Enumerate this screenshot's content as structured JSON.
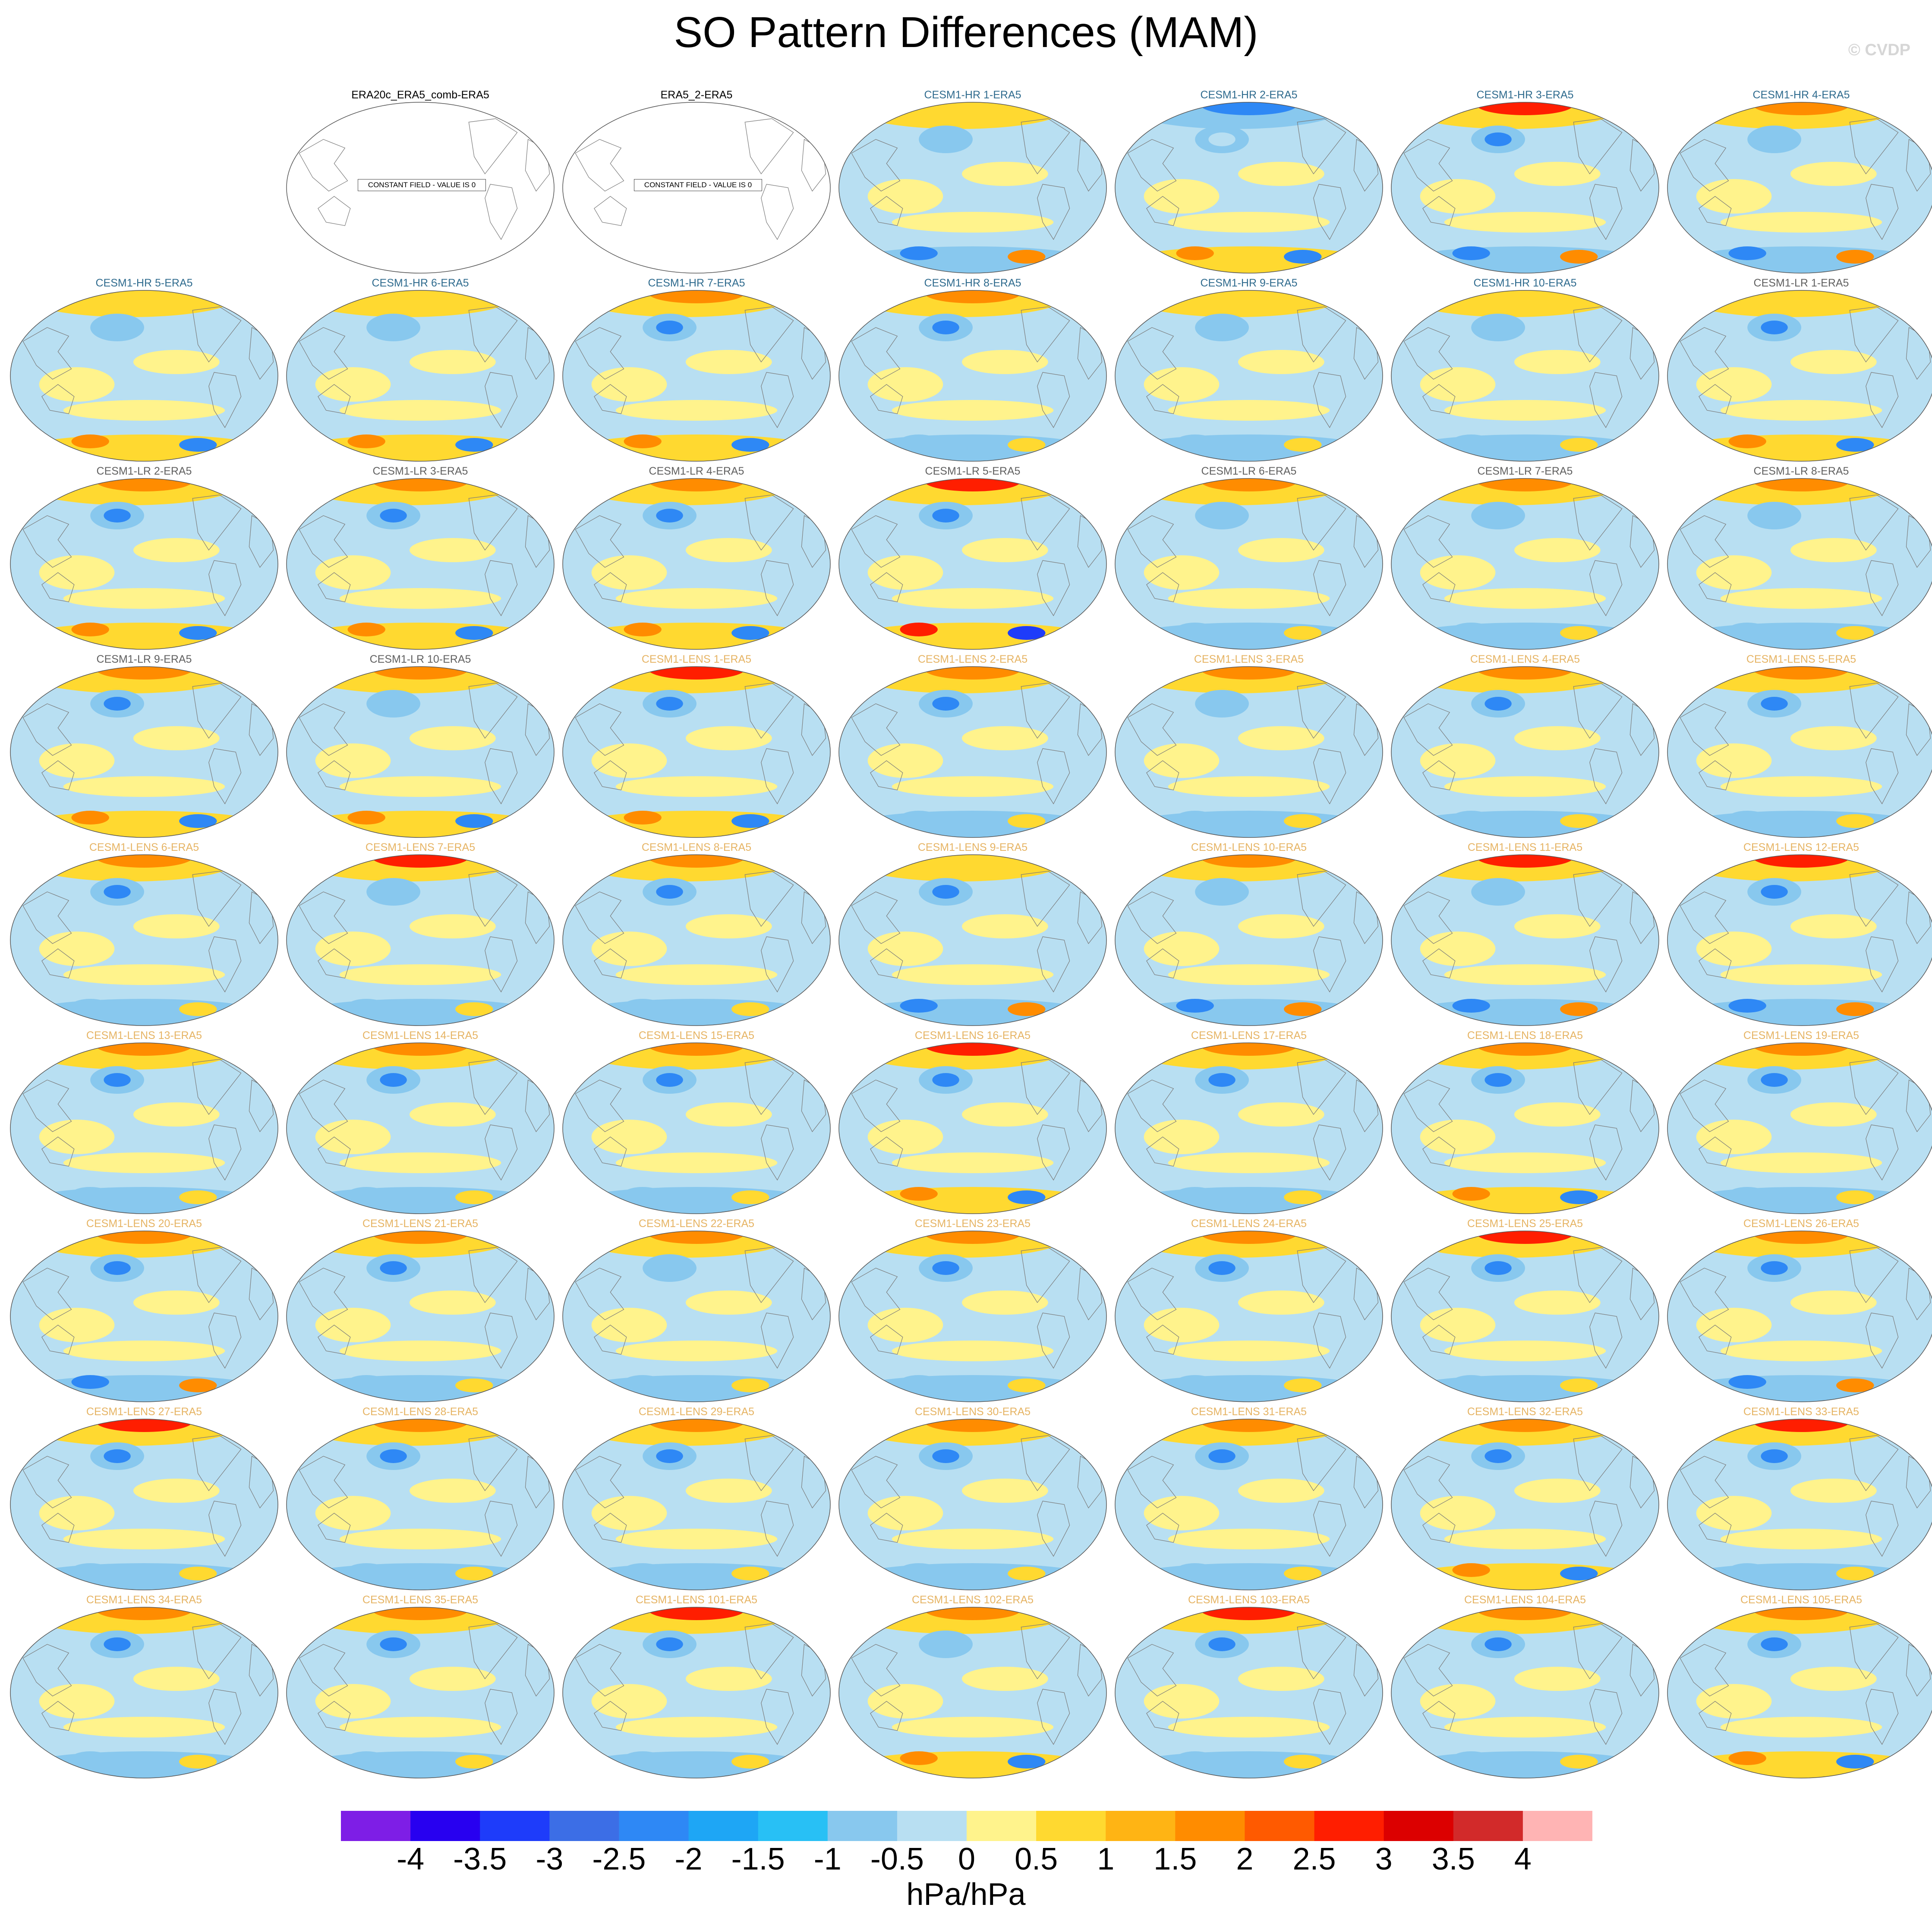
{
  "title": "SO Pattern Differences (MAM)",
  "credit": "© CVDP",
  "constant_field_text": "CONSTANT FIELD - VALUE IS 0",
  "colors": {
    "hr_title": "#2f6b8e",
    "lr_title": "#606060",
    "lens_title": "#e6b464",
    "obs_title": "#000000",
    "land_outline": "#7a7a7a"
  },
  "colorbar": {
    "units": "hPa/hPa",
    "labels": [
      "-4",
      "-3.5",
      "-3",
      "-2.5",
      "-2",
      "-1.5",
      "-1",
      "-0.5",
      "0",
      "0.5",
      "1",
      "1.5",
      "2",
      "2.5",
      "3",
      "3.5",
      "4"
    ],
    "colors": [
      "#7e1ee6",
      "#2800f0",
      "#1e3cfa",
      "#3c6ee6",
      "#2e88f5",
      "#1ea6f5",
      "#28c0f5",
      "#88c8ee",
      "#b8dff2",
      "#fff38c",
      "#ffd930",
      "#ffb414",
      "#ff8c00",
      "#ff5a00",
      "#ff1e00",
      "#dc0000",
      "#d22a2a",
      "#ffb4b4"
    ]
  },
  "panels": [
    {
      "label": "ERA20c_ERA5_comb-ERA5",
      "group": "obs",
      "constant": true
    },
    {
      "label": "ERA5_2-ERA5",
      "group": "obs",
      "constant": true
    },
    {
      "label": "CESM1-HR 1-ERA5",
      "group": "hr",
      "north": 1,
      "pac": -1,
      "south": -2
    },
    {
      "label": "CESM1-HR 2-ERA5",
      "group": "hr",
      "north": -2,
      "pac": 0,
      "south": 2
    },
    {
      "label": "CESM1-HR 3-ERA5",
      "group": "hr",
      "north": 3,
      "pac": -2,
      "south": -2
    },
    {
      "label": "CESM1-HR 4-ERA5",
      "group": "hr",
      "north": 2,
      "pac": -1,
      "south": -2
    },
    {
      "label": "CESM1-HR 5-ERA5",
      "group": "hr",
      "north": 1,
      "pac": -1,
      "south": 2
    },
    {
      "label": "CESM1-HR 6-ERA5",
      "group": "hr",
      "north": 1,
      "pac": -1,
      "south": 2
    },
    {
      "label": "CESM1-HR 7-ERA5",
      "group": "hr",
      "north": 2,
      "pac": -2,
      "south": 2
    },
    {
      "label": "CESM1-HR 8-ERA5",
      "group": "hr",
      "north": 2,
      "pac": -2,
      "south": -1
    },
    {
      "label": "CESM1-HR 9-ERA5",
      "group": "hr",
      "north": 1,
      "pac": -1,
      "south": -1
    },
    {
      "label": "CESM1-HR 10-ERA5",
      "group": "hr",
      "north": 1,
      "pac": -1,
      "south": -1
    },
    {
      "label": "CESM1-LR 1-ERA5",
      "group": "lr",
      "north": 1,
      "pac": -2,
      "south": 2
    },
    {
      "label": "CESM1-LR 2-ERA5",
      "group": "lr",
      "north": 2,
      "pac": -2,
      "south": 2
    },
    {
      "label": "CESM1-LR 3-ERA5",
      "group": "lr",
      "north": 2,
      "pac": -2,
      "south": 2
    },
    {
      "label": "CESM1-LR 4-ERA5",
      "group": "lr",
      "north": 2,
      "pac": -2,
      "south": 2
    },
    {
      "label": "CESM1-LR 5-ERA5",
      "group": "lr",
      "north": 3,
      "pac": -2,
      "south": 3
    },
    {
      "label": "CESM1-LR 6-ERA5",
      "group": "lr",
      "north": 2,
      "pac": -1,
      "south": -1
    },
    {
      "label": "CESM1-LR 7-ERA5",
      "group": "lr",
      "north": 2,
      "pac": -1,
      "south": -1
    },
    {
      "label": "CESM1-LR 8-ERA5",
      "group": "lr",
      "north": 2,
      "pac": -1,
      "south": -1
    },
    {
      "label": "CESM1-LR 9-ERA5",
      "group": "lr",
      "north": 2,
      "pac": -2,
      "south": 2
    },
    {
      "label": "CESM1-LR 10-ERA5",
      "group": "lr",
      "north": 2,
      "pac": -1,
      "south": 2
    },
    {
      "label": "CESM1-LENS 1-ERA5",
      "group": "lens",
      "north": 3,
      "pac": -2,
      "south": 2
    },
    {
      "label": "CESM1-LENS 2-ERA5",
      "group": "lens",
      "north": 2,
      "pac": -2,
      "south": -1
    },
    {
      "label": "CESM1-LENS 3-ERA5",
      "group": "lens",
      "north": 2,
      "pac": -1,
      "south": -1
    },
    {
      "label": "CESM1-LENS 4-ERA5",
      "group": "lens",
      "north": 2,
      "pac": -2,
      "south": -1
    },
    {
      "label": "CESM1-LENS 5-ERA5",
      "group": "lens",
      "north": 2,
      "pac": -2,
      "south": -1
    },
    {
      "label": "CESM1-LENS 6-ERA5",
      "group": "lens",
      "north": 2,
      "pac": -2,
      "south": -1
    },
    {
      "label": "CESM1-LENS 7-ERA5",
      "group": "lens",
      "north": 3,
      "pac": -1,
      "south": -1
    },
    {
      "label": "CESM1-LENS 8-ERA5",
      "group": "lens",
      "north": 2,
      "pac": -2,
      "south": -1
    },
    {
      "label": "CESM1-LENS 9-ERA5",
      "group": "lens",
      "north": 1,
      "pac": -2,
      "south": -2
    },
    {
      "label": "CESM1-LENS 10-ERA5",
      "group": "lens",
      "north": 2,
      "pac": -1,
      "south": -2
    },
    {
      "label": "CESM1-LENS 11-ERA5",
      "group": "lens",
      "north": 3,
      "pac": -1,
      "south": -2
    },
    {
      "label": "CESM1-LENS 12-ERA5",
      "group": "lens",
      "north": 3,
      "pac": -2,
      "south": -2
    },
    {
      "label": "CESM1-LENS 13-ERA5",
      "group": "lens",
      "north": 2,
      "pac": -2,
      "south": -1
    },
    {
      "label": "CESM1-LENS 14-ERA5",
      "group": "lens",
      "north": 2,
      "pac": -2,
      "south": -1
    },
    {
      "label": "CESM1-LENS 15-ERA5",
      "group": "lens",
      "north": 2,
      "pac": -2,
      "south": -1
    },
    {
      "label": "CESM1-LENS 16-ERA5",
      "group": "lens",
      "north": 3,
      "pac": -2,
      "south": 2
    },
    {
      "label": "CESM1-LENS 17-ERA5",
      "group": "lens",
      "north": 2,
      "pac": -2,
      "south": -1
    },
    {
      "label": "CESM1-LENS 18-ERA5",
      "group": "lens",
      "north": 2,
      "pac": -2,
      "south": 2
    },
    {
      "label": "CESM1-LENS 19-ERA5",
      "group": "lens",
      "north": 2,
      "pac": -2,
      "south": -1
    },
    {
      "label": "CESM1-LENS 20-ERA5",
      "group": "lens",
      "north": 2,
      "pac": -2,
      "south": -2
    },
    {
      "label": "CESM1-LENS 21-ERA5",
      "group": "lens",
      "north": 2,
      "pac": -2,
      "south": -1
    },
    {
      "label": "CESM1-LENS 22-ERA5",
      "group": "lens",
      "north": 2,
      "pac": -1,
      "south": -1
    },
    {
      "label": "CESM1-LENS 23-ERA5",
      "group": "lens",
      "north": 2,
      "pac": -2,
      "south": -1
    },
    {
      "label": "CESM1-LENS 24-ERA5",
      "group": "lens",
      "north": 2,
      "pac": -2,
      "south": -1
    },
    {
      "label": "CESM1-LENS 25-ERA5",
      "group": "lens",
      "north": 3,
      "pac": -2,
      "south": -1
    },
    {
      "label": "CESM1-LENS 26-ERA5",
      "group": "lens",
      "north": 2,
      "pac": -2,
      "south": -2
    },
    {
      "label": "CESM1-LENS 27-ERA5",
      "group": "lens",
      "north": 3,
      "pac": -2,
      "south": -1
    },
    {
      "label": "CESM1-LENS 28-ERA5",
      "group": "lens",
      "north": 2,
      "pac": -2,
      "south": -1
    },
    {
      "label": "CESM1-LENS 29-ERA5",
      "group": "lens",
      "north": 2,
      "pac": -2,
      "south": -1
    },
    {
      "label": "CESM1-LENS 30-ERA5",
      "group": "lens",
      "north": 2,
      "pac": -2,
      "south": -1
    },
    {
      "label": "CESM1-LENS 31-ERA5",
      "group": "lens",
      "north": 2,
      "pac": -2,
      "south": -1
    },
    {
      "label": "CESM1-LENS 32-ERA5",
      "group": "lens",
      "north": 2,
      "pac": -2,
      "south": 2
    },
    {
      "label": "CESM1-LENS 33-ERA5",
      "group": "lens",
      "north": 3,
      "pac": -2,
      "south": -1
    },
    {
      "label": "CESM1-LENS 34-ERA5",
      "group": "lens",
      "north": 2,
      "pac": -2,
      "south": -1
    },
    {
      "label": "CESM1-LENS 35-ERA5",
      "group": "lens",
      "north": 2,
      "pac": -2,
      "south": -1
    },
    {
      "label": "CESM1-LENS 101-ERA5",
      "group": "lens",
      "north": 3,
      "pac": -2,
      "south": -1
    },
    {
      "label": "CESM1-LENS 102-ERA5",
      "group": "lens",
      "north": 2,
      "pac": -1,
      "south": 2
    },
    {
      "label": "CESM1-LENS 103-ERA5",
      "group": "lens",
      "north": 3,
      "pac": -2,
      "south": -1
    },
    {
      "label": "CESM1-LENS 104-ERA5",
      "group": "lens",
      "north": 2,
      "pac": -2,
      "south": -1
    },
    {
      "label": "CESM1-LENS 105-ERA5",
      "group": "lens",
      "north": 2,
      "pac": -2,
      "south": 2
    }
  ]
}
